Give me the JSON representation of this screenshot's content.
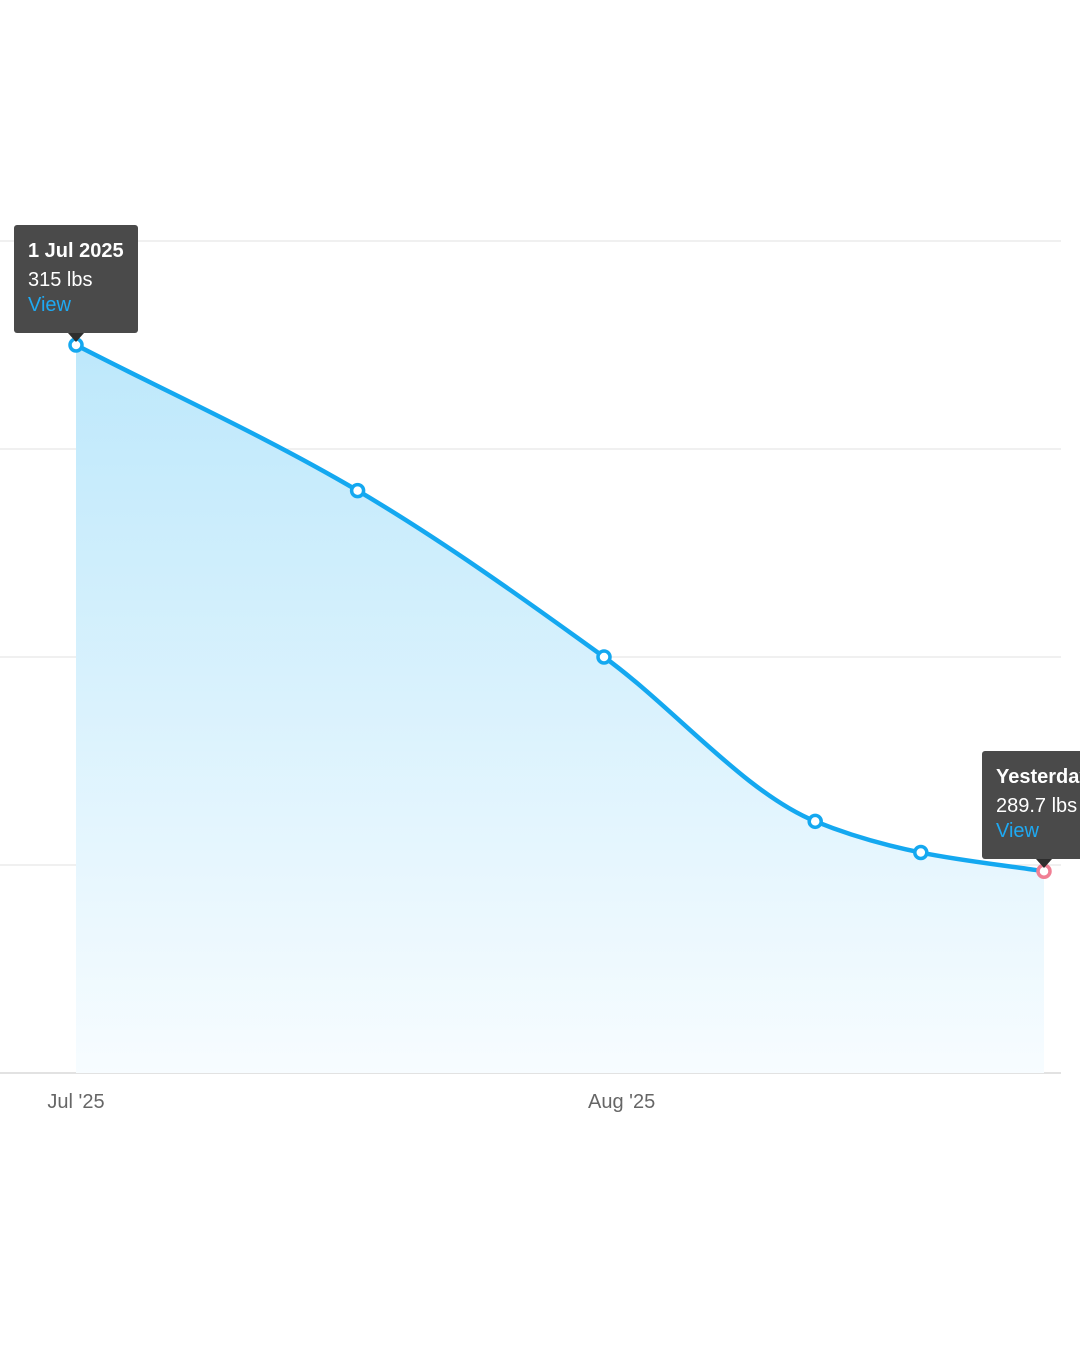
{
  "chart_data": {
    "type": "area",
    "x": [
      "2025-07-01",
      "2025-07-17",
      "2025-07-31",
      "2025-08-12",
      "2025-08-18",
      "2025-08-25"
    ],
    "series": [
      {
        "values": [
          315.0,
          308.0,
          300.0,
          292.1,
          290.6,
          289.7
        ]
      }
    ],
    "x_ticks": [
      {
        "date": "2025-07-01",
        "label": "Jul '25"
      },
      {
        "date": "2025-08-01",
        "label": "Aug '25"
      }
    ],
    "ylim": [
      280,
      320
    ],
    "y_grid": [
      290,
      300,
      310,
      320
    ],
    "grid": true,
    "title": "",
    "xlabel": "",
    "ylabel": ""
  },
  "tooltips": [
    {
      "index": 0,
      "date_label": "1 Jul 2025",
      "value_label": "315 lbs",
      "link_label": "View"
    },
    {
      "index": 5,
      "date_label": "Yesterday",
      "value_label": "289.7 lbs",
      "link_label": "View"
    }
  ],
  "colors": {
    "line": "#14a8f0",
    "fill_top": "#bde8fb",
    "fill_bottom": "#f7fcff",
    "last_point": "#f07f94",
    "tooltip_bg": "#4a4a4a",
    "link": "#1ea9f2"
  }
}
